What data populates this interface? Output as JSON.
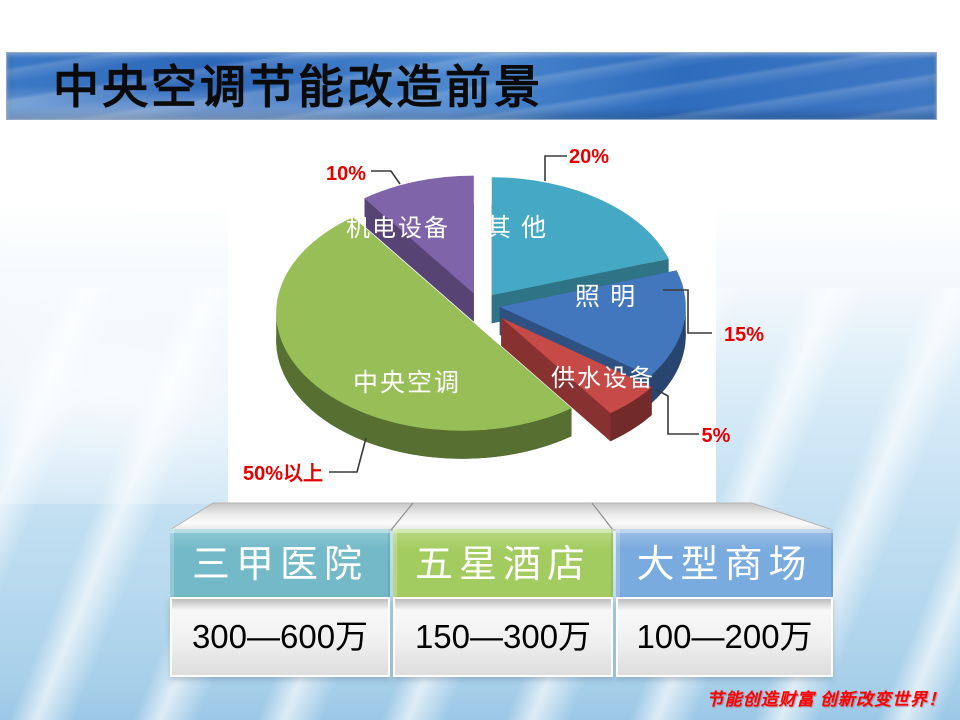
{
  "slide": {
    "title": "中央空调节能改造前景",
    "footer": "节能创造财富 创新改变世界！"
  },
  "chart_data": {
    "type": "pie",
    "style": "3d-exploded",
    "start_angle_deg": -90,
    "direction": "clockwise",
    "label_color": "#ffffff",
    "callout_color": "#e60000",
    "slices": [
      {
        "id": "others",
        "label": "其 他",
        "value": 20,
        "pct_label": "20%",
        "color": "#45a9c5"
      },
      {
        "id": "lighting",
        "label": "照 明",
        "value": 15,
        "pct_label": "15%",
        "color": "#4377bd"
      },
      {
        "id": "water-supply",
        "label": "供水设备",
        "value": 5,
        "pct_label": "5%",
        "color": "#c64a48"
      },
      {
        "id": "central-ac",
        "label": "中央空调",
        "value": 50,
        "pct_label": "50%以上",
        "color": "#98bf57"
      },
      {
        "id": "mechanical-electrical",
        "label": "机电设备",
        "value": 10,
        "pct_label": "10%",
        "color": "#8064aa"
      }
    ]
  },
  "table": {
    "headers": [
      {
        "id": "grade-a-hospital",
        "label": "三甲医院",
        "color_top": "#8fcad6",
        "color": "#74b9c7"
      },
      {
        "id": "five-star-hotel",
        "label": "五星酒店",
        "color_top": "#b9d985",
        "color": "#a3cc60"
      },
      {
        "id": "large-mall",
        "label": "大型商场",
        "color_top": "#9dc0e8",
        "color": "#7aabde"
      }
    ],
    "values": [
      {
        "id": "grade-a-hospital",
        "label": "300—600万"
      },
      {
        "id": "five-star-hotel",
        "label": "150—300万"
      },
      {
        "id": "large-mall",
        "label": "100—200万"
      }
    ]
  }
}
